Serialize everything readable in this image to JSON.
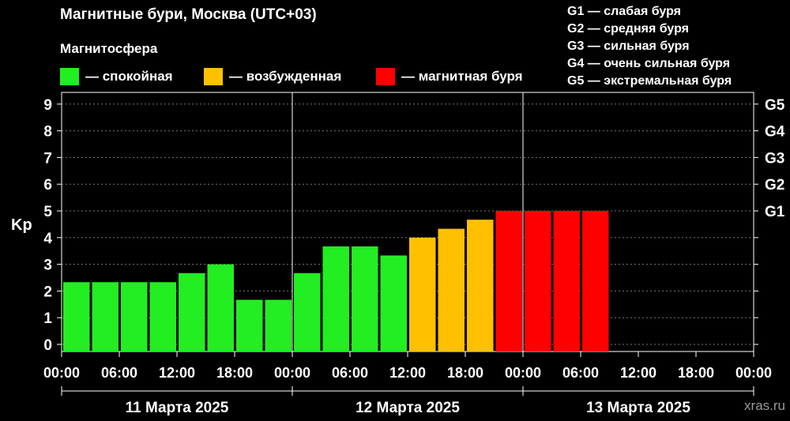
{
  "header": {
    "title": "Магнитные бури, Москва (UTC+03)",
    "subtitle": "Магнитосфера"
  },
  "legend": [
    {
      "label": "— спокойная",
      "color": "#22ee22"
    },
    {
      "label": "— возбужденная",
      "color": "#ffc000"
    },
    {
      "label": "— магнитная буря",
      "color": "#ff0000"
    }
  ],
  "storm_levels": [
    "G1 — слабая буря",
    "G2 — средняя буря",
    "G3 — сильная буря",
    "G4 — очень сильная буря",
    "G5 — экстремальная буря"
  ],
  "brand": "xras.ru",
  "chart_data": {
    "type": "bar",
    "ylabel": "Kp",
    "ylim": [
      0,
      9
    ],
    "yticks": [
      "0",
      "1",
      "2",
      "3",
      "4",
      "5",
      "6",
      "7",
      "8",
      "9"
    ],
    "right_ticks": [
      {
        "value": 5,
        "label": "G1"
      },
      {
        "value": 6,
        "label": "G2"
      },
      {
        "value": 7,
        "label": "G3"
      },
      {
        "value": 8,
        "label": "G4"
      },
      {
        "value": 9,
        "label": "G5"
      }
    ],
    "grid": true,
    "xticks": [
      "00:00",
      "06:00",
      "12:00",
      "18:00",
      "00:00",
      "06:00",
      "12:00",
      "18:00",
      "00:00",
      "06:00",
      "12:00",
      "18:00",
      "00:00"
    ],
    "days": [
      "11 Марта 2025",
      "12 Марта 2025",
      "13 Марта 2025"
    ],
    "interval_hours": 3,
    "values": [
      2.33,
      2.33,
      2.33,
      2.33,
      2.67,
      3.0,
      1.67,
      1.67,
      2.67,
      3.67,
      3.67,
      3.33,
      4.0,
      4.33,
      4.67,
      5.0,
      5.0,
      5.0,
      5.0
    ],
    "colors": {
      "quiet": "#22ee22",
      "active": "#ffc000",
      "storm": "#ff0000"
    }
  }
}
